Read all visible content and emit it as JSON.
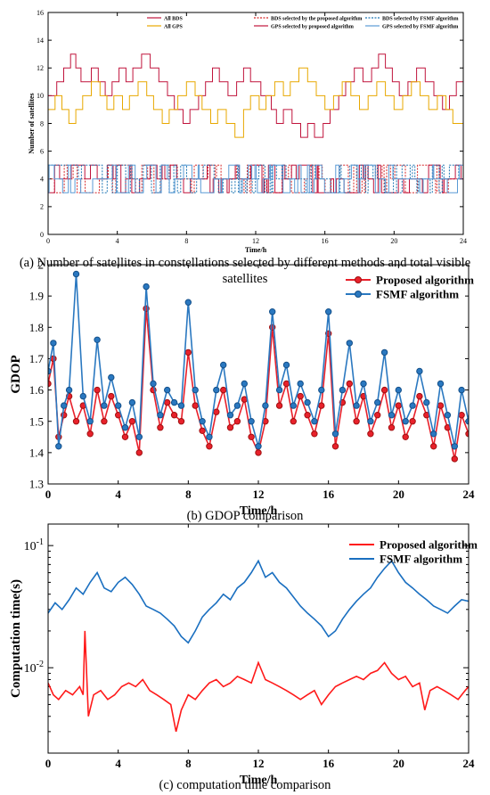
{
  "captions": {
    "a": "(a) Number of satellites in constellations selected by different methods and total visible satellites",
    "b": "(b) GDOP comparison",
    "c": "(c) computation time comparison"
  },
  "chart_data": [
    {
      "type": "line",
      "id": "a",
      "xlabel": "Time/h",
      "ylabel": "Number of satellites",
      "xlim": [
        0,
        24
      ],
      "ylim": [
        0,
        16
      ],
      "xticks": [
        0,
        4,
        8,
        12,
        16,
        20,
        24
      ],
      "yticks": [
        0,
        2,
        4,
        6,
        8,
        10,
        12,
        14,
        16
      ],
      "legend_position": "top",
      "series": [
        {
          "name": "All BDS",
          "color": "#c0143c",
          "style": "solid",
          "x": [
            0,
            0.5,
            0.9,
            1.3,
            1.6,
            1.9,
            2.5,
            2.9,
            3.3,
            3.7,
            4.1,
            4.5,
            4.9,
            5.4,
            5.9,
            6.4,
            6.9,
            7.3,
            7.8,
            8.2,
            8.7,
            9.1,
            9.5,
            9.9,
            10.4,
            10.9,
            11.3,
            11.7,
            12.3,
            12.9,
            13.2,
            13.6,
            14.1,
            14.6,
            15.0,
            15.4,
            15.9,
            16.3,
            16.8,
            17.2,
            17.7,
            18.2,
            18.7,
            19.1,
            19.5,
            19.9,
            20.3,
            20.8,
            21.3,
            21.8,
            22.3,
            22.8,
            23.2,
            23.6,
            24
          ],
          "y": [
            10,
            11,
            12,
            13,
            12,
            11,
            12,
            11,
            10,
            11,
            12,
            11,
            12,
            13,
            12,
            11,
            10,
            9,
            8,
            9,
            10,
            11,
            12,
            11,
            10,
            11,
            12,
            11,
            10,
            9,
            8,
            9,
            8,
            7,
            8,
            7,
            8,
            9,
            10,
            11,
            12,
            11,
            12,
            13,
            12,
            11,
            10,
            11,
            12,
            11,
            10,
            9,
            10,
            11,
            11
          ]
        },
        {
          "name": "All GPS",
          "color": "#e8a800",
          "style": "solid",
          "x": [
            0,
            0.4,
            0.8,
            1.2,
            1.6,
            2.0,
            2.5,
            3.0,
            3.4,
            3.8,
            4.3,
            4.7,
            5.2,
            5.7,
            6.1,
            6.6,
            7.0,
            7.5,
            8.0,
            8.5,
            8.9,
            9.4,
            9.8,
            10.3,
            10.8,
            11.3,
            11.7,
            12.2,
            12.6,
            13.1,
            13.6,
            14.0,
            14.5,
            15.0,
            15.5,
            16.0,
            16.5,
            17.0,
            17.5,
            18.0,
            18.5,
            19.0,
            19.5,
            20.0,
            20.5,
            21.0,
            21.5,
            22.0,
            22.5,
            23.0,
            23.4,
            24
          ],
          "y": [
            9,
            10,
            9,
            8,
            9,
            10,
            11,
            10,
            9,
            10,
            9,
            10,
            11,
            10,
            9,
            8,
            9,
            10,
            11,
            10,
            9,
            8,
            9,
            8,
            7,
            9,
            10,
            9,
            10,
            11,
            10,
            11,
            12,
            11,
            10,
            9,
            10,
            11,
            10,
            9,
            10,
            11,
            10,
            9,
            10,
            11,
            10,
            9,
            10,
            9,
            8,
            9
          ]
        },
        {
          "name": "BDS selected by the proposed algorithm",
          "color": "#d62728",
          "style": "dashed",
          "switch": true,
          "seed": 11,
          "x": [],
          "y": []
        },
        {
          "name": "GPS selected by proposed algorithm",
          "color": "#c0143c",
          "style": "solid",
          "switch": true,
          "seed": 23,
          "x": [],
          "y": []
        },
        {
          "name": "BDS selected by FSMF algorithm",
          "color": "#1f77b4",
          "style": "dashed",
          "switch": true,
          "seed": 37,
          "x": [],
          "y": []
        },
        {
          "name": "GPS selected by FSMF algorithm",
          "color": "#5a9bd5",
          "style": "solid",
          "switch": true,
          "seed": 53,
          "x": [],
          "y": []
        }
      ]
    },
    {
      "type": "line",
      "id": "b",
      "xlabel": "Time/h",
      "ylabel": "GDOP",
      "xlim": [
        0,
        24
      ],
      "ylim": [
        1.3,
        2.0
      ],
      "xticks": [
        0,
        4,
        8,
        12,
        16,
        20,
        24
      ],
      "yticks": [
        1.3,
        1.4,
        1.5,
        1.6,
        1.7,
        1.8,
        1.9,
        2.0
      ],
      "legend_position": "top-right",
      "series": [
        {
          "name": "Proposed algorithm",
          "color": "#e8212b",
          "marker": "circle",
          "x": [
            0,
            0.3,
            0.6,
            0.9,
            1.2,
            1.6,
            2.0,
            2.4,
            2.8,
            3.2,
            3.6,
            4.0,
            4.4,
            4.8,
            5.2,
            5.6,
            6.0,
            6.4,
            6.8,
            7.2,
            7.6,
            8.0,
            8.4,
            8.8,
            9.2,
            9.6,
            10.0,
            10.4,
            10.8,
            11.2,
            11.6,
            12.0,
            12.4,
            12.8,
            13.2,
            13.6,
            14.0,
            14.4,
            14.8,
            15.2,
            15.6,
            16.0,
            16.4,
            16.8,
            17.2,
            17.6,
            18.0,
            18.4,
            18.8,
            19.2,
            19.6,
            20.0,
            20.4,
            20.8,
            21.2,
            21.6,
            22.0,
            22.4,
            22.8,
            23.2,
            23.6,
            24
          ],
          "y": [
            1.62,
            1.7,
            1.45,
            1.52,
            1.58,
            1.5,
            1.55,
            1.46,
            1.6,
            1.5,
            1.58,
            1.52,
            1.45,
            1.5,
            1.4,
            1.86,
            1.6,
            1.48,
            1.56,
            1.52,
            1.5,
            1.72,
            1.55,
            1.47,
            1.42,
            1.53,
            1.6,
            1.48,
            1.5,
            1.57,
            1.45,
            1.4,
            1.5,
            1.8,
            1.55,
            1.62,
            1.5,
            1.58,
            1.52,
            1.46,
            1.55,
            1.78,
            1.42,
            1.56,
            1.62,
            1.5,
            1.58,
            1.46,
            1.52,
            1.6,
            1.48,
            1.55,
            1.45,
            1.5,
            1.58,
            1.52,
            1.42,
            1.55,
            1.48,
            1.38,
            1.52,
            1.46
          ]
        },
        {
          "name": "FSMF algorithm",
          "color": "#2a78c0",
          "marker": "circle",
          "x": [
            0,
            0.3,
            0.6,
            0.9,
            1.2,
            1.6,
            2.0,
            2.4,
            2.8,
            3.2,
            3.6,
            4.0,
            4.4,
            4.8,
            5.2,
            5.6,
            6.0,
            6.4,
            6.8,
            7.2,
            7.6,
            8.0,
            8.4,
            8.8,
            9.2,
            9.6,
            10.0,
            10.4,
            10.8,
            11.2,
            11.6,
            12.0,
            12.4,
            12.8,
            13.2,
            13.6,
            14.0,
            14.4,
            14.8,
            15.2,
            15.6,
            16.0,
            16.4,
            16.8,
            17.2,
            17.6,
            18.0,
            18.4,
            18.8,
            19.2,
            19.6,
            20.0,
            20.4,
            20.8,
            21.2,
            21.6,
            22.0,
            22.4,
            22.8,
            23.2,
            23.6,
            24
          ],
          "y": [
            1.66,
            1.75,
            1.42,
            1.55,
            1.6,
            1.97,
            1.58,
            1.5,
            1.76,
            1.55,
            1.64,
            1.55,
            1.48,
            1.56,
            1.45,
            1.93,
            1.62,
            1.52,
            1.6,
            1.56,
            1.55,
            1.88,
            1.6,
            1.5,
            1.45,
            1.6,
            1.68,
            1.52,
            1.55,
            1.62,
            1.5,
            1.42,
            1.55,
            1.85,
            1.6,
            1.68,
            1.55,
            1.62,
            1.56,
            1.5,
            1.6,
            1.85,
            1.46,
            1.6,
            1.75,
            1.55,
            1.62,
            1.5,
            1.56,
            1.72,
            1.52,
            1.6,
            1.5,
            1.55,
            1.66,
            1.56,
            1.46,
            1.62,
            1.52,
            1.42,
            1.6,
            1.5
          ]
        }
      ]
    },
    {
      "type": "line",
      "id": "c",
      "xlabel": "Time/h",
      "ylabel": "Computation time(s)",
      "xlim": [
        0,
        24
      ],
      "ylim": [
        0.002,
        0.15
      ],
      "yscale": "log",
      "xticks": [
        0,
        4,
        8,
        12,
        16,
        20,
        24
      ],
      "ytick_labels": [
        "10^-1",
        "10^-2"
      ],
      "legend_position": "top-right",
      "series": [
        {
          "name": "Proposed algorithm",
          "color": "#ff1a1a",
          "x": [
            0,
            0.3,
            0.6,
            1.0,
            1.4,
            1.8,
            2.0,
            2.1,
            2.3,
            2.6,
            3.0,
            3.4,
            3.8,
            4.2,
            4.6,
            5.0,
            5.4,
            5.8,
            6.2,
            6.6,
            7.0,
            7.3,
            7.6,
            8.0,
            8.4,
            8.8,
            9.2,
            9.6,
            10.0,
            10.4,
            10.8,
            11.2,
            11.6,
            12.0,
            12.4,
            12.8,
            13.2,
            13.6,
            14.0,
            14.4,
            14.8,
            15.2,
            15.6,
            16.0,
            16.4,
            16.8,
            17.2,
            17.6,
            18.0,
            18.4,
            18.8,
            19.2,
            19.6,
            20.0,
            20.4,
            20.8,
            21.2,
            21.5,
            21.8,
            22.2,
            22.6,
            23.0,
            23.4,
            23.8,
            24
          ],
          "y": [
            0.0075,
            0.006,
            0.0055,
            0.0065,
            0.006,
            0.007,
            0.006,
            0.02,
            0.004,
            0.006,
            0.0065,
            0.0055,
            0.006,
            0.007,
            0.0075,
            0.007,
            0.008,
            0.0065,
            0.006,
            0.0055,
            0.005,
            0.003,
            0.0045,
            0.006,
            0.0055,
            0.0065,
            0.0075,
            0.008,
            0.007,
            0.0075,
            0.0085,
            0.008,
            0.0075,
            0.011,
            0.008,
            0.0075,
            0.007,
            0.0065,
            0.006,
            0.0055,
            0.006,
            0.0065,
            0.005,
            0.006,
            0.007,
            0.0075,
            0.008,
            0.0085,
            0.008,
            0.009,
            0.0095,
            0.011,
            0.009,
            0.008,
            0.0085,
            0.007,
            0.0075,
            0.0045,
            0.0065,
            0.007,
            0.0065,
            0.006,
            0.0055,
            0.0065,
            0.007
          ]
        },
        {
          "name": "FSMF algorithm",
          "color": "#1a6fc0",
          "x": [
            0,
            0.4,
            0.8,
            1.2,
            1.6,
            2.0,
            2.4,
            2.8,
            3.2,
            3.6,
            4.0,
            4.4,
            4.8,
            5.2,
            5.6,
            6.0,
            6.4,
            6.8,
            7.2,
            7.6,
            8.0,
            8.4,
            8.8,
            9.2,
            9.6,
            10.0,
            10.4,
            10.8,
            11.2,
            11.6,
            12.0,
            12.4,
            12.8,
            13.2,
            13.6,
            14.0,
            14.4,
            14.8,
            15.2,
            15.6,
            16.0,
            16.4,
            16.8,
            17.2,
            17.6,
            18.0,
            18.4,
            18.8,
            19.2,
            19.6,
            20.0,
            20.4,
            20.8,
            21.2,
            21.6,
            22.0,
            22.4,
            22.8,
            23.2,
            23.6,
            24
          ],
          "y": [
            0.028,
            0.034,
            0.03,
            0.036,
            0.045,
            0.04,
            0.05,
            0.06,
            0.045,
            0.042,
            0.05,
            0.055,
            0.048,
            0.04,
            0.032,
            0.03,
            0.028,
            0.025,
            0.022,
            0.018,
            0.016,
            0.02,
            0.026,
            0.03,
            0.034,
            0.04,
            0.036,
            0.045,
            0.05,
            0.06,
            0.075,
            0.055,
            0.06,
            0.05,
            0.045,
            0.038,
            0.032,
            0.028,
            0.025,
            0.022,
            0.018,
            0.02,
            0.025,
            0.03,
            0.035,
            0.04,
            0.045,
            0.055,
            0.065,
            0.075,
            0.06,
            0.05,
            0.045,
            0.04,
            0.036,
            0.032,
            0.03,
            0.028,
            0.032,
            0.036,
            0.035
          ]
        }
      ]
    }
  ]
}
